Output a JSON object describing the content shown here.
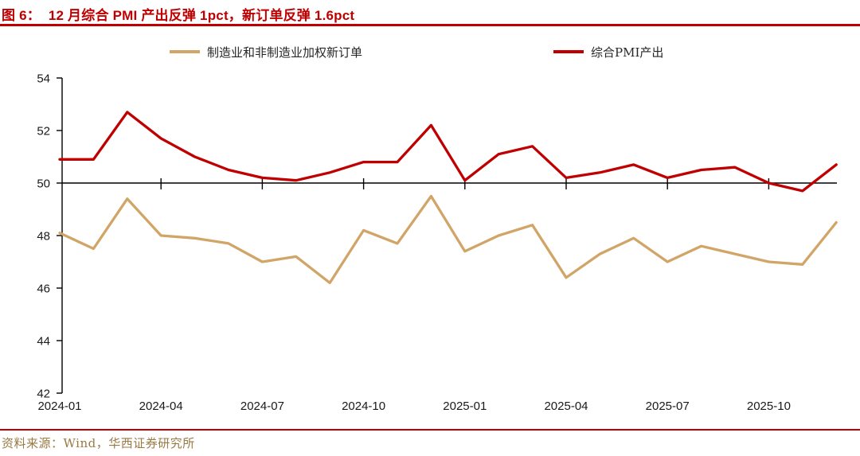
{
  "figure": {
    "title": "图 6：  12 月综合 PMI 产出反弹 1pct，新订单反弹 1.6pct",
    "source": "资料来源：Wind，华西证券研究所"
  },
  "colors": {
    "accent_red": "#C00000",
    "series_gold": "#D1A567",
    "source_text": "#9A7943",
    "axis_line": "#000000",
    "axis_text": "#1A1A1A"
  },
  "chart_data": {
    "type": "line",
    "x": [
      "2024-01",
      "2024-02",
      "2024-03",
      "2024-04",
      "2024-05",
      "2024-06",
      "2024-07",
      "2024-08",
      "2024-09",
      "2024-10",
      "2024-11",
      "2024-12",
      "2025-01",
      "2025-02",
      "2025-03",
      "2025-04",
      "2025-05",
      "2025-06",
      "2025-07",
      "2025-08",
      "2025-09",
      "2025-10",
      "2025-11",
      "2025-12"
    ],
    "series": [
      {
        "name": "制造业和非制造业加权新订单",
        "color": "#D1A567",
        "values": [
          48.1,
          47.5,
          49.4,
          48.0,
          47.9,
          47.7,
          47.0,
          47.2,
          46.2,
          48.2,
          47.7,
          49.5,
          47.4,
          48.0,
          48.4,
          46.4,
          47.3,
          47.9,
          47.0,
          47.6,
          47.3,
          47.0,
          46.9,
          48.5
        ]
      },
      {
        "name": "综合PMI产出",
        "color": "#C00000",
        "values": [
          50.9,
          50.9,
          52.7,
          51.7,
          51.0,
          50.5,
          50.2,
          50.1,
          50.4,
          50.8,
          50.8,
          52.2,
          50.1,
          51.1,
          51.4,
          50.2,
          50.4,
          50.7,
          50.2,
          50.5,
          50.6,
          50.0,
          49.7,
          50.7
        ]
      }
    ],
    "ylim": [
      42,
      54
    ],
    "yticks": [
      54,
      52,
      50,
      48,
      46,
      44,
      42
    ],
    "xtick_labels": [
      "2024-01",
      "2024-04",
      "2024-07",
      "2024-10",
      "2025-01",
      "2025-04",
      "2025-07",
      "2025-10"
    ],
    "baseline": 50,
    "grid": false,
    "legend_position": "top"
  }
}
